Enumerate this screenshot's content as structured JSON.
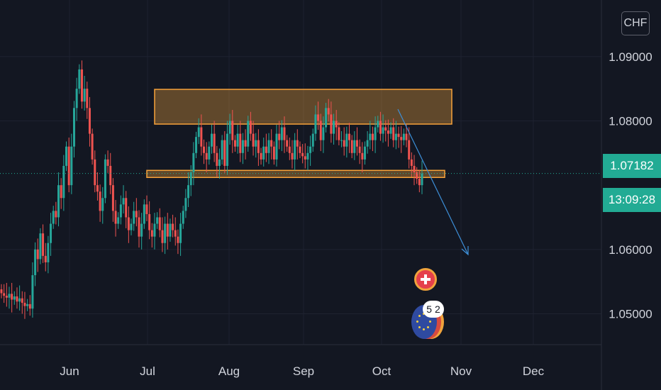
{
  "toolbar": {
    "currency_label": "CHF"
  },
  "price_axis": {
    "labels": [
      "1.09000",
      "1.08000",
      "1.06000",
      "1.05000"
    ],
    "last_price": "1.07182",
    "countdown": "13:09:28"
  },
  "time_axis": {
    "labels": [
      "Jun",
      "Jul",
      "Aug",
      "Sep",
      "Oct",
      "Nov",
      "Dec"
    ]
  },
  "events": {
    "count_label": "5 2"
  },
  "colors": {
    "background": "#131722",
    "up": "#26a69a",
    "down": "#ef5350",
    "zone_fill": "#f0a33c",
    "zone_border": "#f7a23a",
    "projection": "#3d8fd8",
    "last_price_line": "#22ab94",
    "grid": "#1e2230",
    "axis_text": "#d1d4dc"
  },
  "chart_data": {
    "type": "candlestick",
    "symbol_currency": "CHF",
    "y_ticks": [
      1.09,
      1.08,
      1.06,
      1.05
    ],
    "ylim": [
      1.0452,
      1.0988
    ],
    "x_ticks": [
      "Jun",
      "Jul",
      "Aug",
      "Sep",
      "Oct",
      "Nov",
      "Dec"
    ],
    "last_price": 1.07182,
    "countdown": "13:09:28",
    "series_close": [
      1.0532,
      1.0528,
      1.0525,
      1.0531,
      1.0522,
      1.0527,
      1.0519,
      1.0524,
      1.0517,
      1.0512,
      1.0515,
      1.0508,
      1.056,
      1.06,
      1.0585,
      1.0625,
      1.059,
      1.058,
      1.061,
      1.064,
      1.066,
      1.065,
      1.07,
      1.068,
      1.073,
      1.076,
      1.07,
      1.076,
      1.082,
      1.085,
      1.088,
      1.083,
      1.085,
      1.082,
      1.078,
      1.074,
      1.07,
      1.069,
      1.066,
      1.068,
      1.074,
      1.073,
      1.07,
      1.066,
      1.064,
      1.065,
      1.067,
      1.068,
      1.065,
      1.063,
      1.064,
      1.066,
      1.065,
      1.062,
      1.064,
      1.067,
      1.0655,
      1.063,
      1.062,
      1.064,
      1.065,
      1.063,
      1.061,
      1.064,
      1.062,
      1.064,
      1.063,
      1.062,
      1.061,
      1.064,
      1.066,
      1.068,
      1.07,
      1.072,
      1.075,
      1.0775,
      1.079,
      1.076,
      1.075,
      1.074,
      1.076,
      1.078,
      1.075,
      1.073,
      1.074,
      1.077,
      1.073,
      1.078,
      1.08,
      1.077,
      1.076,
      1.078,
      1.075,
      1.077,
      1.076,
      1.08,
      1.078,
      1.076,
      1.077,
      1.075,
      1.074,
      1.076,
      1.075,
      1.077,
      1.076,
      1.074,
      1.078,
      1.077,
      1.079,
      1.077,
      1.076,
      1.075,
      1.074,
      1.077,
      1.076,
      1.075,
      1.0745,
      1.074,
      1.075,
      1.076,
      1.078,
      1.081,
      1.08,
      1.077,
      1.079,
      1.082,
      1.081,
      1.078,
      1.08,
      1.079,
      1.077,
      1.077,
      1.076,
      1.078,
      1.077,
      1.075,
      1.077,
      1.076,
      1.075,
      1.074,
      1.076,
      1.077,
      1.078,
      1.077,
      1.079,
      1.08,
      1.078,
      1.079,
      1.0785,
      1.078,
      1.079,
      1.077,
      1.078,
      1.0775,
      1.077,
      1.078,
      1.077,
      1.074,
      1.073,
      1.072,
      1.071,
      1.07,
      1.0718
    ],
    "zones": [
      {
        "label": "resistance",
        "y_range": [
          1.0795,
          1.0849
        ],
        "x_range": [
          "2023-07-12",
          "2023-10-28"
        ]
      },
      {
        "label": "support",
        "y_range": [
          1.0712,
          1.0723
        ],
        "x_range": [
          "2023-07-01",
          "2023-10-25"
        ]
      }
    ],
    "projection": {
      "from": [
        "2023-10-07",
        1.0805
      ],
      "to": [
        "2023-10-28",
        1.0595
      ]
    }
  }
}
